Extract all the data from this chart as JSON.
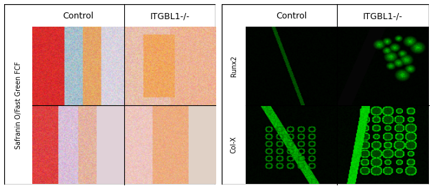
{
  "figure_width": 6.28,
  "figure_height": 2.75,
  "dpi": 100,
  "left_panel": {
    "col_labels": [
      "Control",
      "ITGBL1-/-"
    ],
    "row_label": "Safranin O/Fast Green FCF",
    "row_label_fontsize": 7,
    "col_label_fontsize": 9,
    "n_rows": 2,
    "n_cols": 2,
    "border_color": "#000000",
    "border_lw": 1.0
  },
  "right_panel": {
    "col_labels": [
      "Control",
      "ITGBL1-/-"
    ],
    "row_labels": [
      "Runx2",
      "Col-X"
    ],
    "col_label_fontsize": 9,
    "row_label_fontsize": 7,
    "n_rows": 2,
    "n_cols": 2,
    "border_color": "#000000",
    "border_lw": 1.0
  },
  "background_color": "#ffffff"
}
